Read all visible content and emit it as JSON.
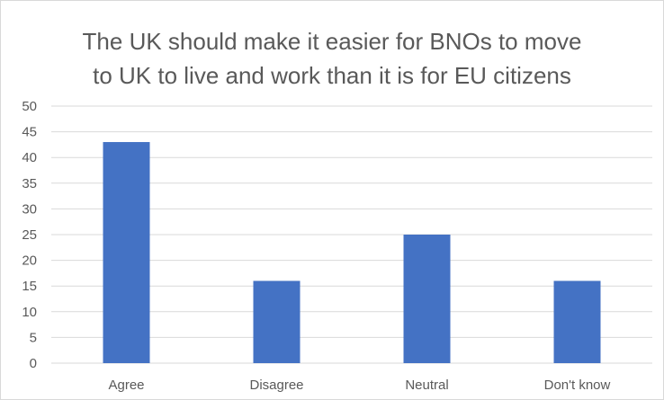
{
  "chart_data": {
    "type": "bar",
    "title_lines": [
      "The UK should make it easier for BNOs to move",
      "to UK to live and work than it is for EU citizens"
    ],
    "categories": [
      "Agree",
      "Disagree",
      "Neutral",
      "Don't know"
    ],
    "values": [
      43,
      16,
      25,
      16
    ],
    "ylim": [
      0,
      50
    ],
    "yticks": [
      0,
      5,
      10,
      15,
      20,
      25,
      30,
      35,
      40,
      45,
      50
    ],
    "grid": true,
    "legend": "none",
    "bar_color": "#4472c4",
    "grid_color": "#d9d9d9",
    "text_color": "#595959"
  }
}
